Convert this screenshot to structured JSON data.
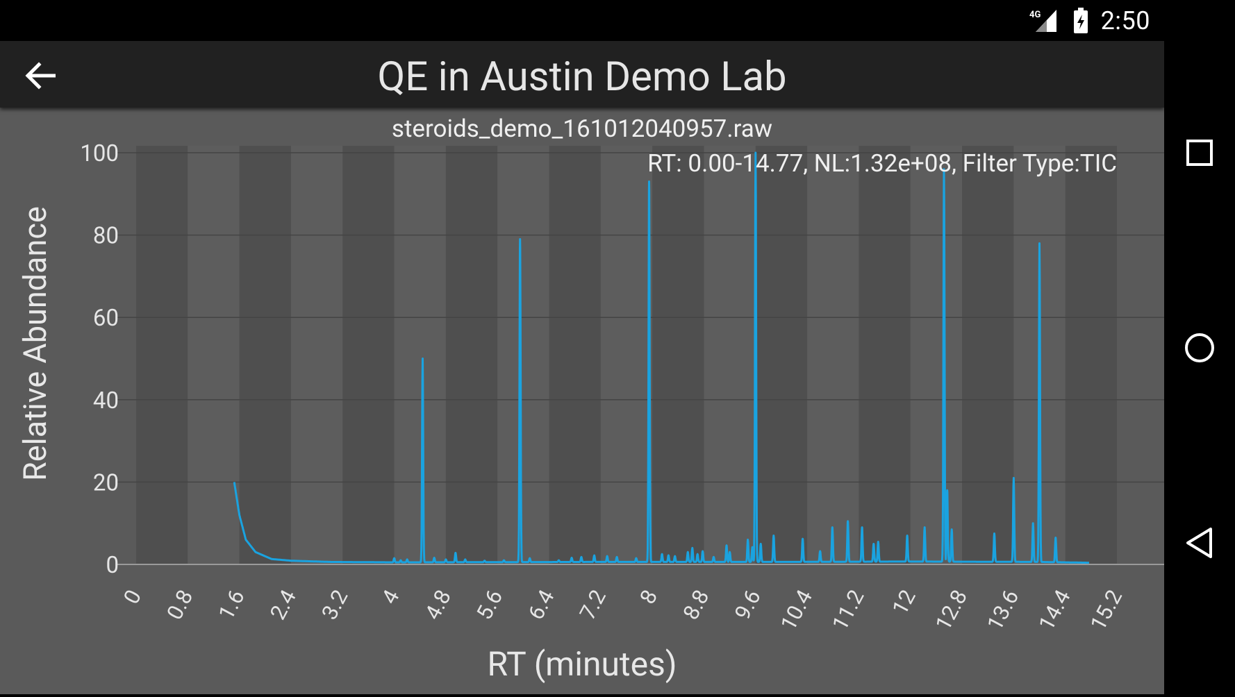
{
  "status_bar": {
    "time": "2:50",
    "network_label": "4G",
    "icons": [
      "signal-icon",
      "battery-icon"
    ]
  },
  "app_bar": {
    "title": "QE in Austin Demo Lab",
    "back_icon": "arrow-left-icon"
  },
  "nav_bar": {
    "icons": [
      "square-recents-icon",
      "circle-home-icon",
      "triangle-back-icon"
    ]
  },
  "colors": {
    "trace": "#1aa3e0",
    "background": "#5a5a5a",
    "stripe_dark": "#4f4f4f",
    "stripe_light": "#5d5d5d",
    "app_bar": "#212121"
  },
  "chart_data": {
    "type": "line",
    "title": "steroids_demo_161012040957.raw",
    "subtitle": "RT: 0.00-14.77, NL:1.32e+08, Filter Type:TIC",
    "xlabel": "RT (minutes)",
    "ylabel": "Relative Abundance",
    "xlim": [
      0,
      15.2
    ],
    "ylim": [
      0,
      100
    ],
    "x_ticks": [
      "0",
      "0.8",
      "1.6",
      "2.4",
      "3.2",
      "4",
      "4.8",
      "5.6",
      "6.4",
      "7.2",
      "8",
      "8.8",
      "9.6",
      "10.4",
      "11.2",
      "12",
      "12.8",
      "13.6",
      "14.4",
      "15.2"
    ],
    "y_ticks": [
      "0",
      "20",
      "40",
      "60",
      "80",
      "100"
    ],
    "grid": true,
    "baseline": [
      [
        1.52,
        20
      ],
      [
        1.6,
        12
      ],
      [
        1.7,
        6
      ],
      [
        1.85,
        3
      ],
      [
        2.1,
        1.3
      ],
      [
        2.4,
        0.9
      ],
      [
        3.0,
        0.6
      ],
      [
        4.0,
        0.5
      ],
      [
        7.0,
        0.6
      ],
      [
        10.0,
        0.6
      ],
      [
        12.0,
        0.7
      ],
      [
        14.0,
        0.6
      ],
      [
        14.77,
        0.4
      ]
    ],
    "peaks": [
      {
        "rt": 4.0,
        "abundance": 1.5
      },
      {
        "rt": 4.1,
        "abundance": 1.0
      },
      {
        "rt": 4.2,
        "abundance": 1.2
      },
      {
        "rt": 4.44,
        "abundance": 50
      },
      {
        "rt": 4.62,
        "abundance": 1.6
      },
      {
        "rt": 4.8,
        "abundance": 1.2
      },
      {
        "rt": 4.95,
        "abundance": 2.8
      },
      {
        "rt": 5.1,
        "abundance": 1.2
      },
      {
        "rt": 5.4,
        "abundance": 0.9
      },
      {
        "rt": 5.7,
        "abundance": 1.0
      },
      {
        "rt": 5.95,
        "abundance": 79
      },
      {
        "rt": 6.1,
        "abundance": 1.5
      },
      {
        "rt": 6.55,
        "abundance": 1.0
      },
      {
        "rt": 6.75,
        "abundance": 1.6
      },
      {
        "rt": 6.9,
        "abundance": 1.8
      },
      {
        "rt": 7.1,
        "abundance": 2.2
      },
      {
        "rt": 7.3,
        "abundance": 2.0
      },
      {
        "rt": 7.45,
        "abundance": 1.8
      },
      {
        "rt": 7.75,
        "abundance": 1.5
      },
      {
        "rt": 7.95,
        "abundance": 93
      },
      {
        "rt": 8.15,
        "abundance": 2.5
      },
      {
        "rt": 8.25,
        "abundance": 2.2
      },
      {
        "rt": 8.35,
        "abundance": 2.0
      },
      {
        "rt": 8.55,
        "abundance": 3.0
      },
      {
        "rt": 8.62,
        "abundance": 4.0
      },
      {
        "rt": 8.7,
        "abundance": 2.5
      },
      {
        "rt": 8.78,
        "abundance": 3.2
      },
      {
        "rt": 8.95,
        "abundance": 1.8
      },
      {
        "rt": 9.15,
        "abundance": 4.6
      },
      {
        "rt": 9.2,
        "abundance": 3.0
      },
      {
        "rt": 9.48,
        "abundance": 6.0
      },
      {
        "rt": 9.55,
        "abundance": 4.2
      },
      {
        "rt": 9.6,
        "abundance": 100
      },
      {
        "rt": 9.68,
        "abundance": 5.0
      },
      {
        "rt": 9.88,
        "abundance": 7.0
      },
      {
        "rt": 10.33,
        "abundance": 6.2
      },
      {
        "rt": 10.6,
        "abundance": 3.2
      },
      {
        "rt": 10.79,
        "abundance": 9.0
      },
      {
        "rt": 11.03,
        "abundance": 10.5
      },
      {
        "rt": 11.25,
        "abundance": 9.0
      },
      {
        "rt": 11.43,
        "abundance": 5.0
      },
      {
        "rt": 11.5,
        "abundance": 5.5
      },
      {
        "rt": 11.95,
        "abundance": 7.0
      },
      {
        "rt": 12.22,
        "abundance": 9.0
      },
      {
        "rt": 12.52,
        "abundance": 96
      },
      {
        "rt": 12.57,
        "abundance": 18
      },
      {
        "rt": 12.64,
        "abundance": 8.5
      },
      {
        "rt": 13.3,
        "abundance": 7.5
      },
      {
        "rt": 13.6,
        "abundance": 21
      },
      {
        "rt": 13.9,
        "abundance": 10
      },
      {
        "rt": 14.0,
        "abundance": 78
      },
      {
        "rt": 14.25,
        "abundance": 6.5
      }
    ]
  }
}
